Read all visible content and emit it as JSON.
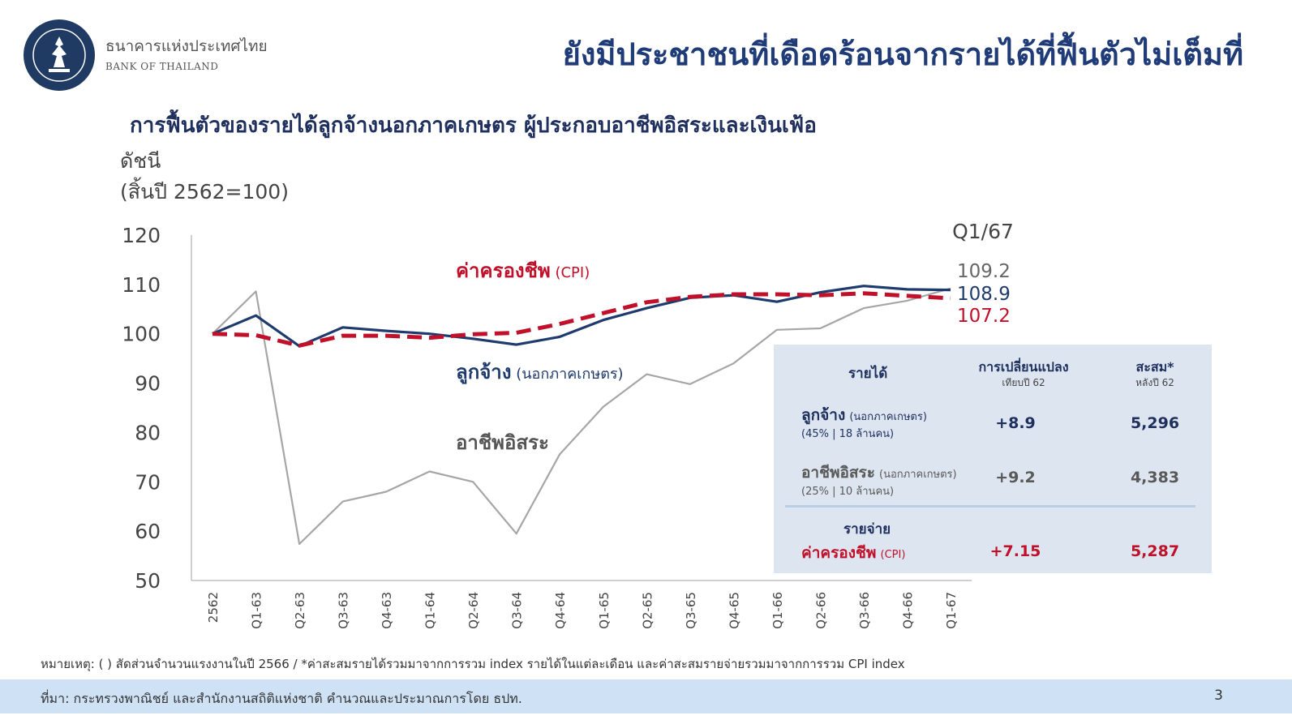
{
  "header": {
    "logo_th": "ธนาคารแห่งประเทศไทย",
    "logo_en": "BANK OF THAILAND",
    "title": "ยังมีประชาชนที่เดือดร้อนจากรายได้ที่ฟื้นตัวไม่เต็มที่"
  },
  "chart_title": "การฟื้นตัวของรายได้ลูกจ้างนอกภาคเกษตร ผู้ประกอบอาชีพอิสระและเงินเฟ้อ",
  "index_label": [
    "ดัชนี",
    "(สิ้นปี 2562=100)"
  ],
  "chart_data": {
    "type": "line",
    "ylim": [
      50,
      120
    ],
    "yticks": [
      50,
      60,
      70,
      80,
      90,
      100,
      110,
      120
    ],
    "categories": [
      "2562",
      "Q1-63",
      "Q2-63",
      "Q3-63",
      "Q4-63",
      "Q1-64",
      "Q2-64",
      "Q3-64",
      "Q4-64",
      "Q1-65",
      "Q2-65",
      "Q3-65",
      "Q4-65",
      "Q1-66",
      "Q2-66",
      "Q3-66",
      "Q4-66",
      "Q1-67"
    ],
    "series": [
      {
        "name": "ค่าครองชีพ",
        "name_suffix": "(CPI)",
        "color": "#c0102a",
        "style": "dashed",
        "values": [
          100,
          99.7,
          97.6,
          99.6,
          99.6,
          99.2,
          99.9,
          100.2,
          102.0,
          104.2,
          106.4,
          107.5,
          108.0,
          108.0,
          107.8,
          108.2,
          107.7,
          107.2
        ]
      },
      {
        "name": "ลูกจ้าง",
        "name_suffix": "(นอกภาคเกษตร)",
        "color": "#1f3b6e",
        "style": "solid",
        "values": [
          100,
          103.7,
          97.5,
          101.3,
          100.6,
          100.0,
          99.0,
          97.8,
          99.4,
          102.8,
          105.2,
          107.3,
          107.8,
          106.5,
          108.4,
          109.7,
          109.0,
          108.9
        ]
      },
      {
        "name": "อาชีพอิสระ",
        "name_suffix": "",
        "color": "#a6a6a6",
        "style": "solid",
        "values": [
          100,
          108.6,
          57.4,
          66.0,
          68.0,
          72.1,
          70.0,
          59.5,
          75.6,
          85.2,
          91.8,
          89.8,
          94.0,
          100.8,
          101.1,
          105.2,
          106.7,
          109.2
        ]
      }
    ],
    "end_label_period": "Q1/67",
    "end_values": [
      "109.2",
      "108.9",
      "107.2"
    ]
  },
  "summary": {
    "header_income": "รายได้",
    "header_change": "การเปลี่ยนแปลง",
    "header_change_sub": "เทียบปี 62",
    "header_cum": "สะสม*",
    "header_cum_sub": "หลังปี 62",
    "row1_name": "ลูกจ้าง",
    "row1_name_suffix": "(นอกภาคเกษตร)",
    "row1_sub": "(45% | 18 ล้านคน)",
    "row1_change": "+8.9",
    "row1_cum": "5,296",
    "row2_name": "อาชีพอิสระ",
    "row2_name_suffix": "(นอกภาคเกษตร)",
    "row2_sub": "(25% | 10 ล้านคน)",
    "row2_change": "+9.2",
    "row2_cum": "4,383",
    "expense_header": "รายจ่าย",
    "row3_name": "ค่าครองชีพ",
    "row3_name_suffix": "(CPI)",
    "row3_change": "+7.15",
    "row3_cum": "5,287",
    "colors": {
      "employee": "#1f2f5e",
      "self": "#595959",
      "cpi": "#c0102a"
    }
  },
  "note": "หมายเหตุ: ( ) สัดส่วนจำนวนแรงงานในปี 2566 / *ค่าสะสมรายได้รวมมาจากการรวม index รายได้ในแต่ละเดือน และค่าสะสมรายจ่ายรวมมาจากการรวม CPI index",
  "footer": {
    "source": "ที่มา: กระทรวงพาณิชย์ และสำนักงานสถิติแห่งชาติ คำนวณและประมาณการโดย ธปท.",
    "page": "3"
  }
}
